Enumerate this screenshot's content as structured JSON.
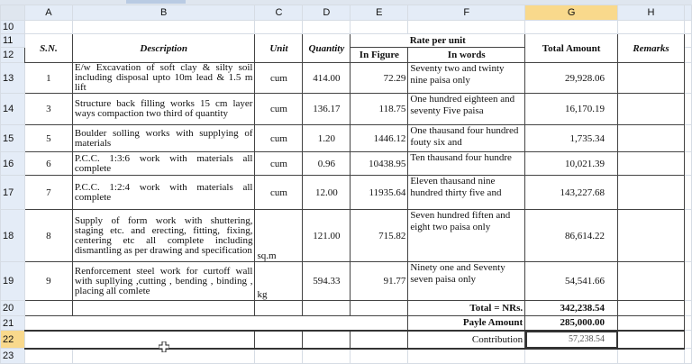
{
  "columns": [
    "A",
    "B",
    "C",
    "D",
    "E",
    "F",
    "G",
    "H"
  ],
  "selected_column": "G",
  "selected_row": "22",
  "row_numbers": [
    "10",
    "11",
    "12",
    "13",
    "14",
    "15",
    "16",
    "17",
    "18",
    "19",
    "20",
    "21",
    "22",
    "23"
  ],
  "header": {
    "sn": "S.N.",
    "description": "Description",
    "unit": "Unit",
    "quantity": "Quantity",
    "rate_per_unit": "Rate per unit",
    "in_figure": "In Figure",
    "in_words": "In words",
    "total_amount": "Total Amount",
    "remarks": "Remarks"
  },
  "rows": [
    {
      "sn": "1",
      "description": "E/w Excavation of soft clay & silty soil including disposal upto 10m lead & 1.5 m lift",
      "unit": "cum",
      "quantity": "414.00",
      "rate_figure": "72.29",
      "rate_words": "Seventy two and twinty nine paisa only",
      "total": "29,928.06",
      "remarks": ""
    },
    {
      "sn": "3",
      "description": "Structure back filling works 15 cm layer ways compaction  two third of quantity",
      "unit": "cum",
      "quantity": "136.17",
      "rate_figure": "118.75",
      "rate_words": "One hundred eighteen and seventy Five paisa",
      "total": "16,170.19",
      "remarks": ""
    },
    {
      "sn": "5",
      "description": "Boulder solling works with supplying of materials",
      "unit": "cum",
      "quantity": "1.20",
      "rate_figure": "1446.12",
      "rate_words": "One thausand four hundred fouty six and",
      "total": "1,735.34",
      "remarks": ""
    },
    {
      "sn": "6",
      "description": "P.C.C. 1:3:6 work with materials all complete",
      "unit": "cum",
      "quantity": "0.96",
      "rate_figure": "10438.95",
      "rate_words": "Ten thausand four  hundre",
      "total": "10,021.39",
      "remarks": ""
    },
    {
      "sn": "7",
      "description": "P.C.C. 1:2:4 work with materials all complete",
      "unit": "cum",
      "quantity": "12.00",
      "rate_figure": "11935.64",
      "rate_words": "Eleven thausand  nine hundred thirty five  and",
      "total": "143,227.68",
      "remarks": ""
    },
    {
      "sn": "8",
      "description": "Supply of form work with shuttering, staging etc. and erecting, fitting, fixing, centering etc all complete including dismantling as per drawing and specification",
      "unit": "sq.m",
      "quantity": "121.00",
      "rate_figure": "715.82",
      "rate_words": "Seven hundred fiften and eight two paisa only",
      "total": "86,614.22",
      "remarks": ""
    },
    {
      "sn": "9",
      "description": "Renforcement  steel work for curtoff wall with supllying ,cutting , bending , binding , placing all comlete",
      "unit": "kg",
      "quantity": "594.33",
      "rate_figure": "91.77",
      "rate_words": "Ninety one and Seventy seven paisa only",
      "total": "54,541.66",
      "remarks": ""
    }
  ],
  "summary": {
    "total_label": "Total = NRs.",
    "total_value": "342,238.54",
    "payable_label": "Payle Amount",
    "payable_value": "285,000.00",
    "contribution_label": "Contribution",
    "contribution_value": "57,238.54"
  }
}
